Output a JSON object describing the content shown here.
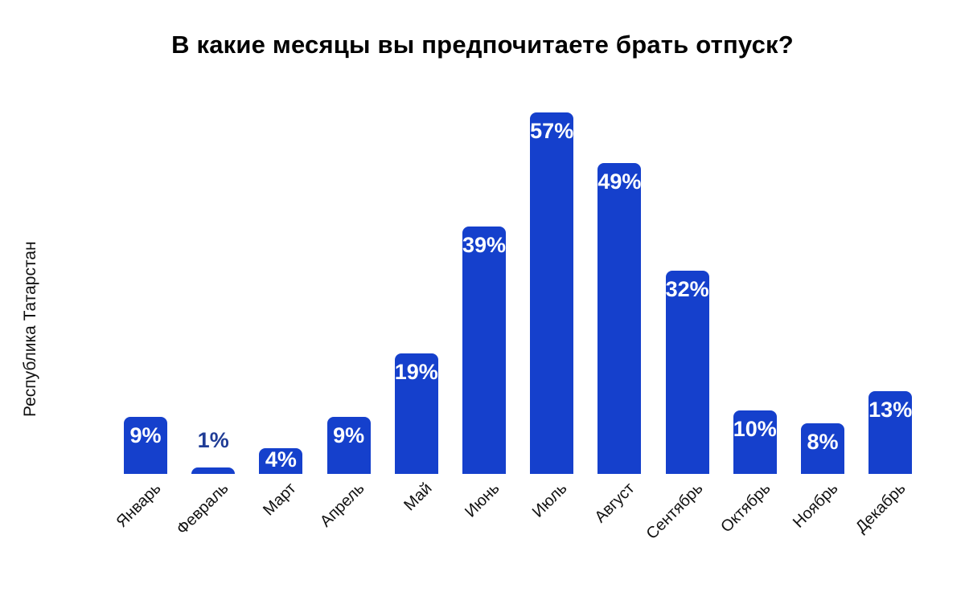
{
  "title": "В какие месяцы вы предпочитаете брать отпуск?",
  "y_axis_label": "Республика Татарстан",
  "colors": {
    "bar": "#1540cc",
    "bar_label_inside": "#ffffff",
    "bar_label_outside": "#203c96",
    "title_text": "#000000",
    "axis_text": "#111111",
    "background": "#ffffff"
  },
  "chart_data": {
    "type": "bar",
    "title": "В какие месяцы вы предпочитаете брать отпуск?",
    "ylabel": "Республика Татарстан",
    "xlabel": "",
    "categories": [
      "Январь",
      "Февраль",
      "Март",
      "Апрель",
      "Май",
      "Июнь",
      "Июль",
      "Август",
      "Сентябрь",
      "Октябрь",
      "Ноябрь",
      "Декабрь"
    ],
    "values": [
      9,
      1,
      4,
      9,
      19,
      39,
      57,
      49,
      32,
      10,
      8,
      13
    ],
    "value_suffix": "%",
    "ylim": [
      0,
      60
    ],
    "grid": false,
    "legend": "none",
    "bar_label_position": "inside-top, outside-above when bar too short",
    "x_tick_rotation_deg": 45
  }
}
